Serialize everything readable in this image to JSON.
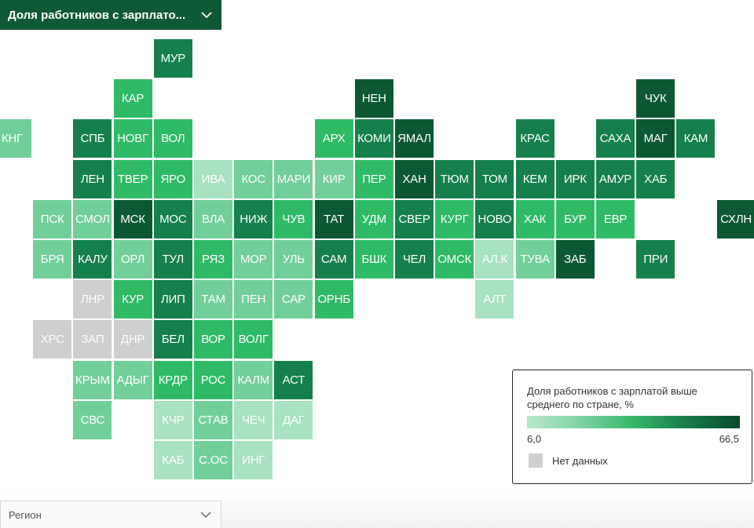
{
  "top_select": {
    "label": "Доля работников с зарплато...",
    "icon": "chevron-down-icon"
  },
  "bottom_select": {
    "label": "Регион",
    "icon": "chevron-down-icon"
  },
  "legend": {
    "title": "Доля работников с зарплатой выше среднего по стране, %",
    "min": "6,0",
    "max": "66,5",
    "nodata": "Нет данных",
    "nodata_color": "#cfcfcf",
    "gradient_colors": [
      "#b8e8cc",
      "#7fd3a3",
      "#35b868",
      "#1a7a4a",
      "#0b4a2c"
    ]
  },
  "regions": [
    {
      "code": "МУР",
      "col": 4,
      "row": 0,
      "level": "dark"
    },
    {
      "code": "КАР",
      "col": 3,
      "row": 1,
      "level": "mid"
    },
    {
      "code": "НЕН",
      "col": 9,
      "row": 1,
      "level": "vdark"
    },
    {
      "code": "ЧУК",
      "col": 16,
      "row": 1,
      "level": "vdark"
    },
    {
      "code": "КНГ",
      "col": 0,
      "row": 2,
      "level": "light"
    },
    {
      "code": "СПБ",
      "col": 2,
      "row": 2,
      "level": "dark"
    },
    {
      "code": "НОВГ",
      "col": 3,
      "row": 2,
      "level": "mid"
    },
    {
      "code": "ВОЛ",
      "col": 4,
      "row": 2,
      "level": "mid"
    },
    {
      "code": "АРХ",
      "col": 8,
      "row": 2,
      "level": "mid"
    },
    {
      "code": "КОМИ",
      "col": 9,
      "row": 2,
      "level": "dark"
    },
    {
      "code": "ЯМАЛ",
      "col": 10,
      "row": 2,
      "level": "vdark"
    },
    {
      "code": "КРАС",
      "col": 13,
      "row": 2,
      "level": "dark"
    },
    {
      "code": "САХА",
      "col": 15,
      "row": 2,
      "level": "dark"
    },
    {
      "code": "МАГ",
      "col": 16,
      "row": 2,
      "level": "vdark"
    },
    {
      "code": "КАМ",
      "col": 17,
      "row": 2,
      "level": "dark"
    },
    {
      "code": "ЛЕН",
      "col": 2,
      "row": 3,
      "level": "dark"
    },
    {
      "code": "ТВЕР",
      "col": 3,
      "row": 3,
      "level": "mid"
    },
    {
      "code": "ЯРО",
      "col": 4,
      "row": 3,
      "level": "mid"
    },
    {
      "code": "ИВА",
      "col": 5,
      "row": 3,
      "level": "vlight"
    },
    {
      "code": "КОС",
      "col": 6,
      "row": 3,
      "level": "light"
    },
    {
      "code": "МАРИ",
      "col": 7,
      "row": 3,
      "level": "light"
    },
    {
      "code": "КИР",
      "col": 8,
      "row": 3,
      "level": "light"
    },
    {
      "code": "ПЕР",
      "col": 9,
      "row": 3,
      "level": "mid"
    },
    {
      "code": "ХАН",
      "col": 10,
      "row": 3,
      "level": "vdark"
    },
    {
      "code": "ТЮМ",
      "col": 11,
      "row": 3,
      "level": "dark"
    },
    {
      "code": "ТОМ",
      "col": 12,
      "row": 3,
      "level": "dark"
    },
    {
      "code": "КЕМ",
      "col": 13,
      "row": 3,
      "level": "dark"
    },
    {
      "code": "ИРК",
      "col": 14,
      "row": 3,
      "level": "dark"
    },
    {
      "code": "АМУР",
      "col": 15,
      "row": 3,
      "level": "dark"
    },
    {
      "code": "ХАБ",
      "col": 16,
      "row": 3,
      "level": "dark"
    },
    {
      "code": "ПСК",
      "col": 1,
      "row": 4,
      "level": "light"
    },
    {
      "code": "СМОЛ",
      "col": 2,
      "row": 4,
      "level": "light"
    },
    {
      "code": "МСК",
      "col": 3,
      "row": 4,
      "level": "vdark"
    },
    {
      "code": "МОС",
      "col": 4,
      "row": 4,
      "level": "dark"
    },
    {
      "code": "ВЛА",
      "col": 5,
      "row": 4,
      "level": "light"
    },
    {
      "code": "НИЖ",
      "col": 6,
      "row": 4,
      "level": "dark"
    },
    {
      "code": "ЧУВ",
      "col": 7,
      "row": 4,
      "level": "mid"
    },
    {
      "code": "ТАТ",
      "col": 8,
      "row": 4,
      "level": "vdark"
    },
    {
      "code": "УДМ",
      "col": 9,
      "row": 4,
      "level": "mid"
    },
    {
      "code": "СВЕР",
      "col": 10,
      "row": 4,
      "level": "dark"
    },
    {
      "code": "КУРГ",
      "col": 11,
      "row": 4,
      "level": "mid"
    },
    {
      "code": "НОВО",
      "col": 12,
      "row": 4,
      "level": "dark"
    },
    {
      "code": "ХАК",
      "col": 13,
      "row": 4,
      "level": "mid"
    },
    {
      "code": "БУР",
      "col": 14,
      "row": 4,
      "level": "mid"
    },
    {
      "code": "ЕВР",
      "col": 15,
      "row": 4,
      "level": "mid"
    },
    {
      "code": "СХЛН",
      "col": 18,
      "row": 4,
      "level": "vdark"
    },
    {
      "code": "БРЯ",
      "col": 1,
      "row": 5,
      "level": "light"
    },
    {
      "code": "КАЛУ",
      "col": 2,
      "row": 5,
      "level": "dark"
    },
    {
      "code": "ОРЛ",
      "col": 3,
      "row": 5,
      "level": "light"
    },
    {
      "code": "ТУЛ",
      "col": 4,
      "row": 5,
      "level": "dark"
    },
    {
      "code": "РЯЗ",
      "col": 5,
      "row": 5,
      "level": "mid"
    },
    {
      "code": "МОР",
      "col": 6,
      "row": 5,
      "level": "light"
    },
    {
      "code": "УЛЬ",
      "col": 7,
      "row": 5,
      "level": "light"
    },
    {
      "code": "САМ",
      "col": 8,
      "row": 5,
      "level": "dark"
    },
    {
      "code": "БШК",
      "col": 9,
      "row": 5,
      "level": "mid"
    },
    {
      "code": "ЧЕЛ",
      "col": 10,
      "row": 5,
      "level": "dark"
    },
    {
      "code": "ОМСК",
      "col": 11,
      "row": 5,
      "level": "mid"
    },
    {
      "code": "АЛ.К",
      "col": 12,
      "row": 5,
      "level": "vlight"
    },
    {
      "code": "ТУВА",
      "col": 13,
      "row": 5,
      "level": "light"
    },
    {
      "code": "ЗАБ",
      "col": 14,
      "row": 5,
      "level": "vdark"
    },
    {
      "code": "ПРИ",
      "col": 16,
      "row": 5,
      "level": "dark"
    },
    {
      "code": "ЛНР",
      "col": 2,
      "row": 6,
      "level": "nodata"
    },
    {
      "code": "КУР",
      "col": 3,
      "row": 6,
      "level": "mid"
    },
    {
      "code": "ЛИП",
      "col": 4,
      "row": 6,
      "level": "dark"
    },
    {
      "code": "ТАМ",
      "col": 5,
      "row": 6,
      "level": "light"
    },
    {
      "code": "ПЕН",
      "col": 6,
      "row": 6,
      "level": "light"
    },
    {
      "code": "САР",
      "col": 7,
      "row": 6,
      "level": "light"
    },
    {
      "code": "ОРНБ",
      "col": 8,
      "row": 6,
      "level": "mid"
    },
    {
      "code": "АЛТ",
      "col": 12,
      "row": 6,
      "level": "vlight"
    },
    {
      "code": "ХРС",
      "col": 1,
      "row": 7,
      "level": "nodata"
    },
    {
      "code": "ЗАП",
      "col": 2,
      "row": 7,
      "level": "nodata"
    },
    {
      "code": "ДНР",
      "col": 3,
      "row": 7,
      "level": "nodata"
    },
    {
      "code": "БЕЛ",
      "col": 4,
      "row": 7,
      "level": "dark"
    },
    {
      "code": "ВОР",
      "col": 5,
      "row": 7,
      "level": "mid"
    },
    {
      "code": "ВОЛГ",
      "col": 6,
      "row": 7,
      "level": "mid"
    },
    {
      "code": "КРЫМ",
      "col": 2,
      "row": 8,
      "level": "light"
    },
    {
      "code": "АДЫГ",
      "col": 3,
      "row": 8,
      "level": "light"
    },
    {
      "code": "КРДР",
      "col": 4,
      "row": 8,
      "level": "mid"
    },
    {
      "code": "РОС",
      "col": 5,
      "row": 8,
      "level": "mid"
    },
    {
      "code": "КАЛМ",
      "col": 6,
      "row": 8,
      "level": "light"
    },
    {
      "code": "АСТ",
      "col": 7,
      "row": 8,
      "level": "dark"
    },
    {
      "code": "СВС",
      "col": 2,
      "row": 9,
      "level": "light"
    },
    {
      "code": "КЧР",
      "col": 4,
      "row": 9,
      "level": "vlight"
    },
    {
      "code": "СТАВ",
      "col": 5,
      "row": 9,
      "level": "light"
    },
    {
      "code": "ЧЕЧ",
      "col": 6,
      "row": 9,
      "level": "vlight"
    },
    {
      "code": "ДАГ",
      "col": 7,
      "row": 9,
      "level": "vlight"
    },
    {
      "code": "КАБ",
      "col": 4,
      "row": 10,
      "level": "vlight"
    },
    {
      "code": "С.ОС",
      "col": 5,
      "row": 10,
      "level": "light"
    },
    {
      "code": "ИНГ",
      "col": 6,
      "row": 10,
      "level": "vlight"
    }
  ],
  "level_colors": {
    "vlight": "#a8e2c0",
    "light": "#72cf9a",
    "mid": "#2fbb66",
    "dark": "#15804c",
    "vdark": "#0b5832",
    "nodata": "#cfcfcf"
  }
}
